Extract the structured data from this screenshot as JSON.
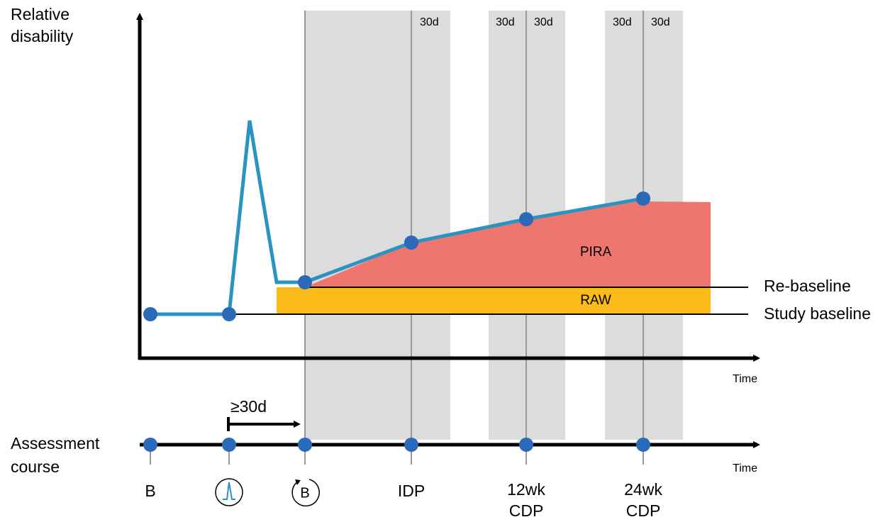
{
  "y_axis_label": [
    "Relative",
    "disability"
  ],
  "x_axis_label": "Time",
  "course_axis_label": "Time",
  "course_label": [
    "Assessment",
    "course"
  ],
  "window_labels": [
    "30d",
    "30d",
    "30d",
    "30d",
    "30d"
  ],
  "regions": {
    "pira": "PIRA",
    "raw": "RAW"
  },
  "baselines": {
    "re_baseline": "Re-baseline",
    "study_baseline": "Study baseline"
  },
  "interval_label": "≥30d",
  "events": [
    {
      "label": [
        "B"
      ]
    },
    {
      "label": []
    },
    {
      "label": [
        "B"
      ]
    },
    {
      "label": [
        "IDP"
      ]
    },
    {
      "label": [
        "12wk",
        "CDP"
      ]
    },
    {
      "label": [
        "24wk",
        "CDP"
      ]
    }
  ]
}
